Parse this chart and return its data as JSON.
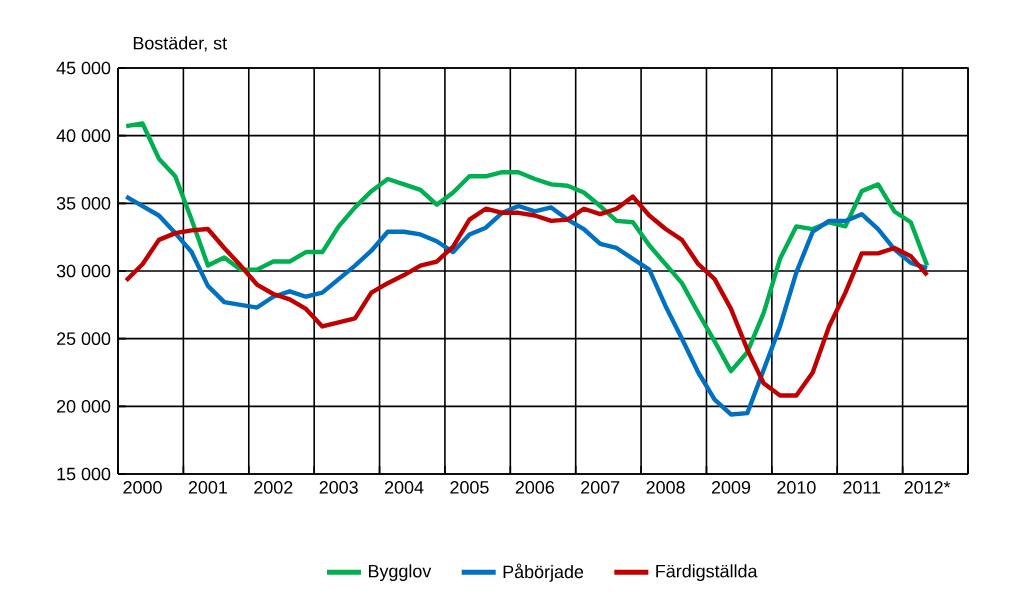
{
  "chart_data": {
    "type": "line",
    "ylabel": "Bostäder, st",
    "categories": [
      null,
      "2000",
      null,
      null,
      null,
      "2001",
      null,
      null,
      null,
      "2002",
      null,
      null,
      null,
      "2003",
      null,
      null,
      null,
      "2004",
      null,
      null,
      null,
      "2005",
      null,
      null,
      null,
      "2006",
      null,
      null,
      null,
      "2007",
      null,
      null,
      null,
      "2008",
      null,
      null,
      null,
      "2009",
      null,
      null,
      null,
      "2010",
      null,
      null,
      null,
      "2011",
      null,
      null,
      null,
      "2012*"
    ],
    "series": [
      {
        "name": "Bygglov",
        "color": "#00b050",
        "values": [
          40700,
          40900,
          38300,
          37000,
          33800,
          30400,
          31000,
          30100,
          30100,
          30700,
          30700,
          31400,
          31400,
          33300,
          34700,
          35900,
          36800,
          36400,
          36000,
          34900,
          35800,
          37000,
          37000,
          37300,
          37300,
          36800,
          36400,
          36300,
          35800,
          34800,
          33700,
          33600,
          31900,
          30500,
          29100,
          26900,
          24800,
          22600,
          24000,
          26900,
          30900,
          33300,
          33100,
          33600,
          33300,
          35900,
          36400,
          34400,
          33600,
          30400
        ]
      },
      {
        "name": "Påbörjade",
        "color": "#0070c0",
        "values": [
          35500,
          34800,
          34100,
          32800,
          31400,
          28900,
          27700,
          27500,
          27300,
          28100,
          28500,
          28100,
          28400,
          29400,
          30400,
          31500,
          32900,
          32900,
          32700,
          32200,
          31400,
          32700,
          33200,
          34300,
          34800,
          34400,
          34700,
          33800,
          33100,
          32000,
          31700,
          30900,
          30100,
          27400,
          25000,
          22500,
          20500,
          19400,
          19500,
          22700,
          25900,
          29900,
          32900,
          33700,
          33700,
          34200,
          33100,
          31600,
          30600,
          30200
        ]
      },
      {
        "name": "Färdigställda",
        "color": "#c00000",
        "values": [
          29300,
          30500,
          32300,
          32800,
          33000,
          33100,
          31700,
          30400,
          29000,
          28300,
          27900,
          27200,
          25900,
          26200,
          26500,
          28400,
          29100,
          29700,
          30400,
          30700,
          31800,
          33800,
          34600,
          34300,
          34300,
          34100,
          33700,
          33800,
          34600,
          34200,
          34600,
          35500,
          34100,
          33100,
          32300,
          30500,
          29400,
          27200,
          24200,
          21700,
          20800,
          20800,
          22500,
          25900,
          28400,
          31300,
          31300,
          31700,
          31100,
          29700
        ]
      }
    ],
    "ylim": [
      15000,
      45000
    ],
    "yticks": [
      {
        "value": 15000,
        "label": "15 000"
      },
      {
        "value": 20000,
        "label": "20 000"
      },
      {
        "value": 25000,
        "label": "25 000"
      },
      {
        "value": 30000,
        "label": "30 000"
      },
      {
        "value": 35000,
        "label": "35 000"
      },
      {
        "value": 40000,
        "label": "40 000"
      },
      {
        "value": 45000,
        "label": "45 000"
      }
    ],
    "grid": true,
    "legend": "bottom",
    "marker": "none",
    "line_style": "solid"
  }
}
